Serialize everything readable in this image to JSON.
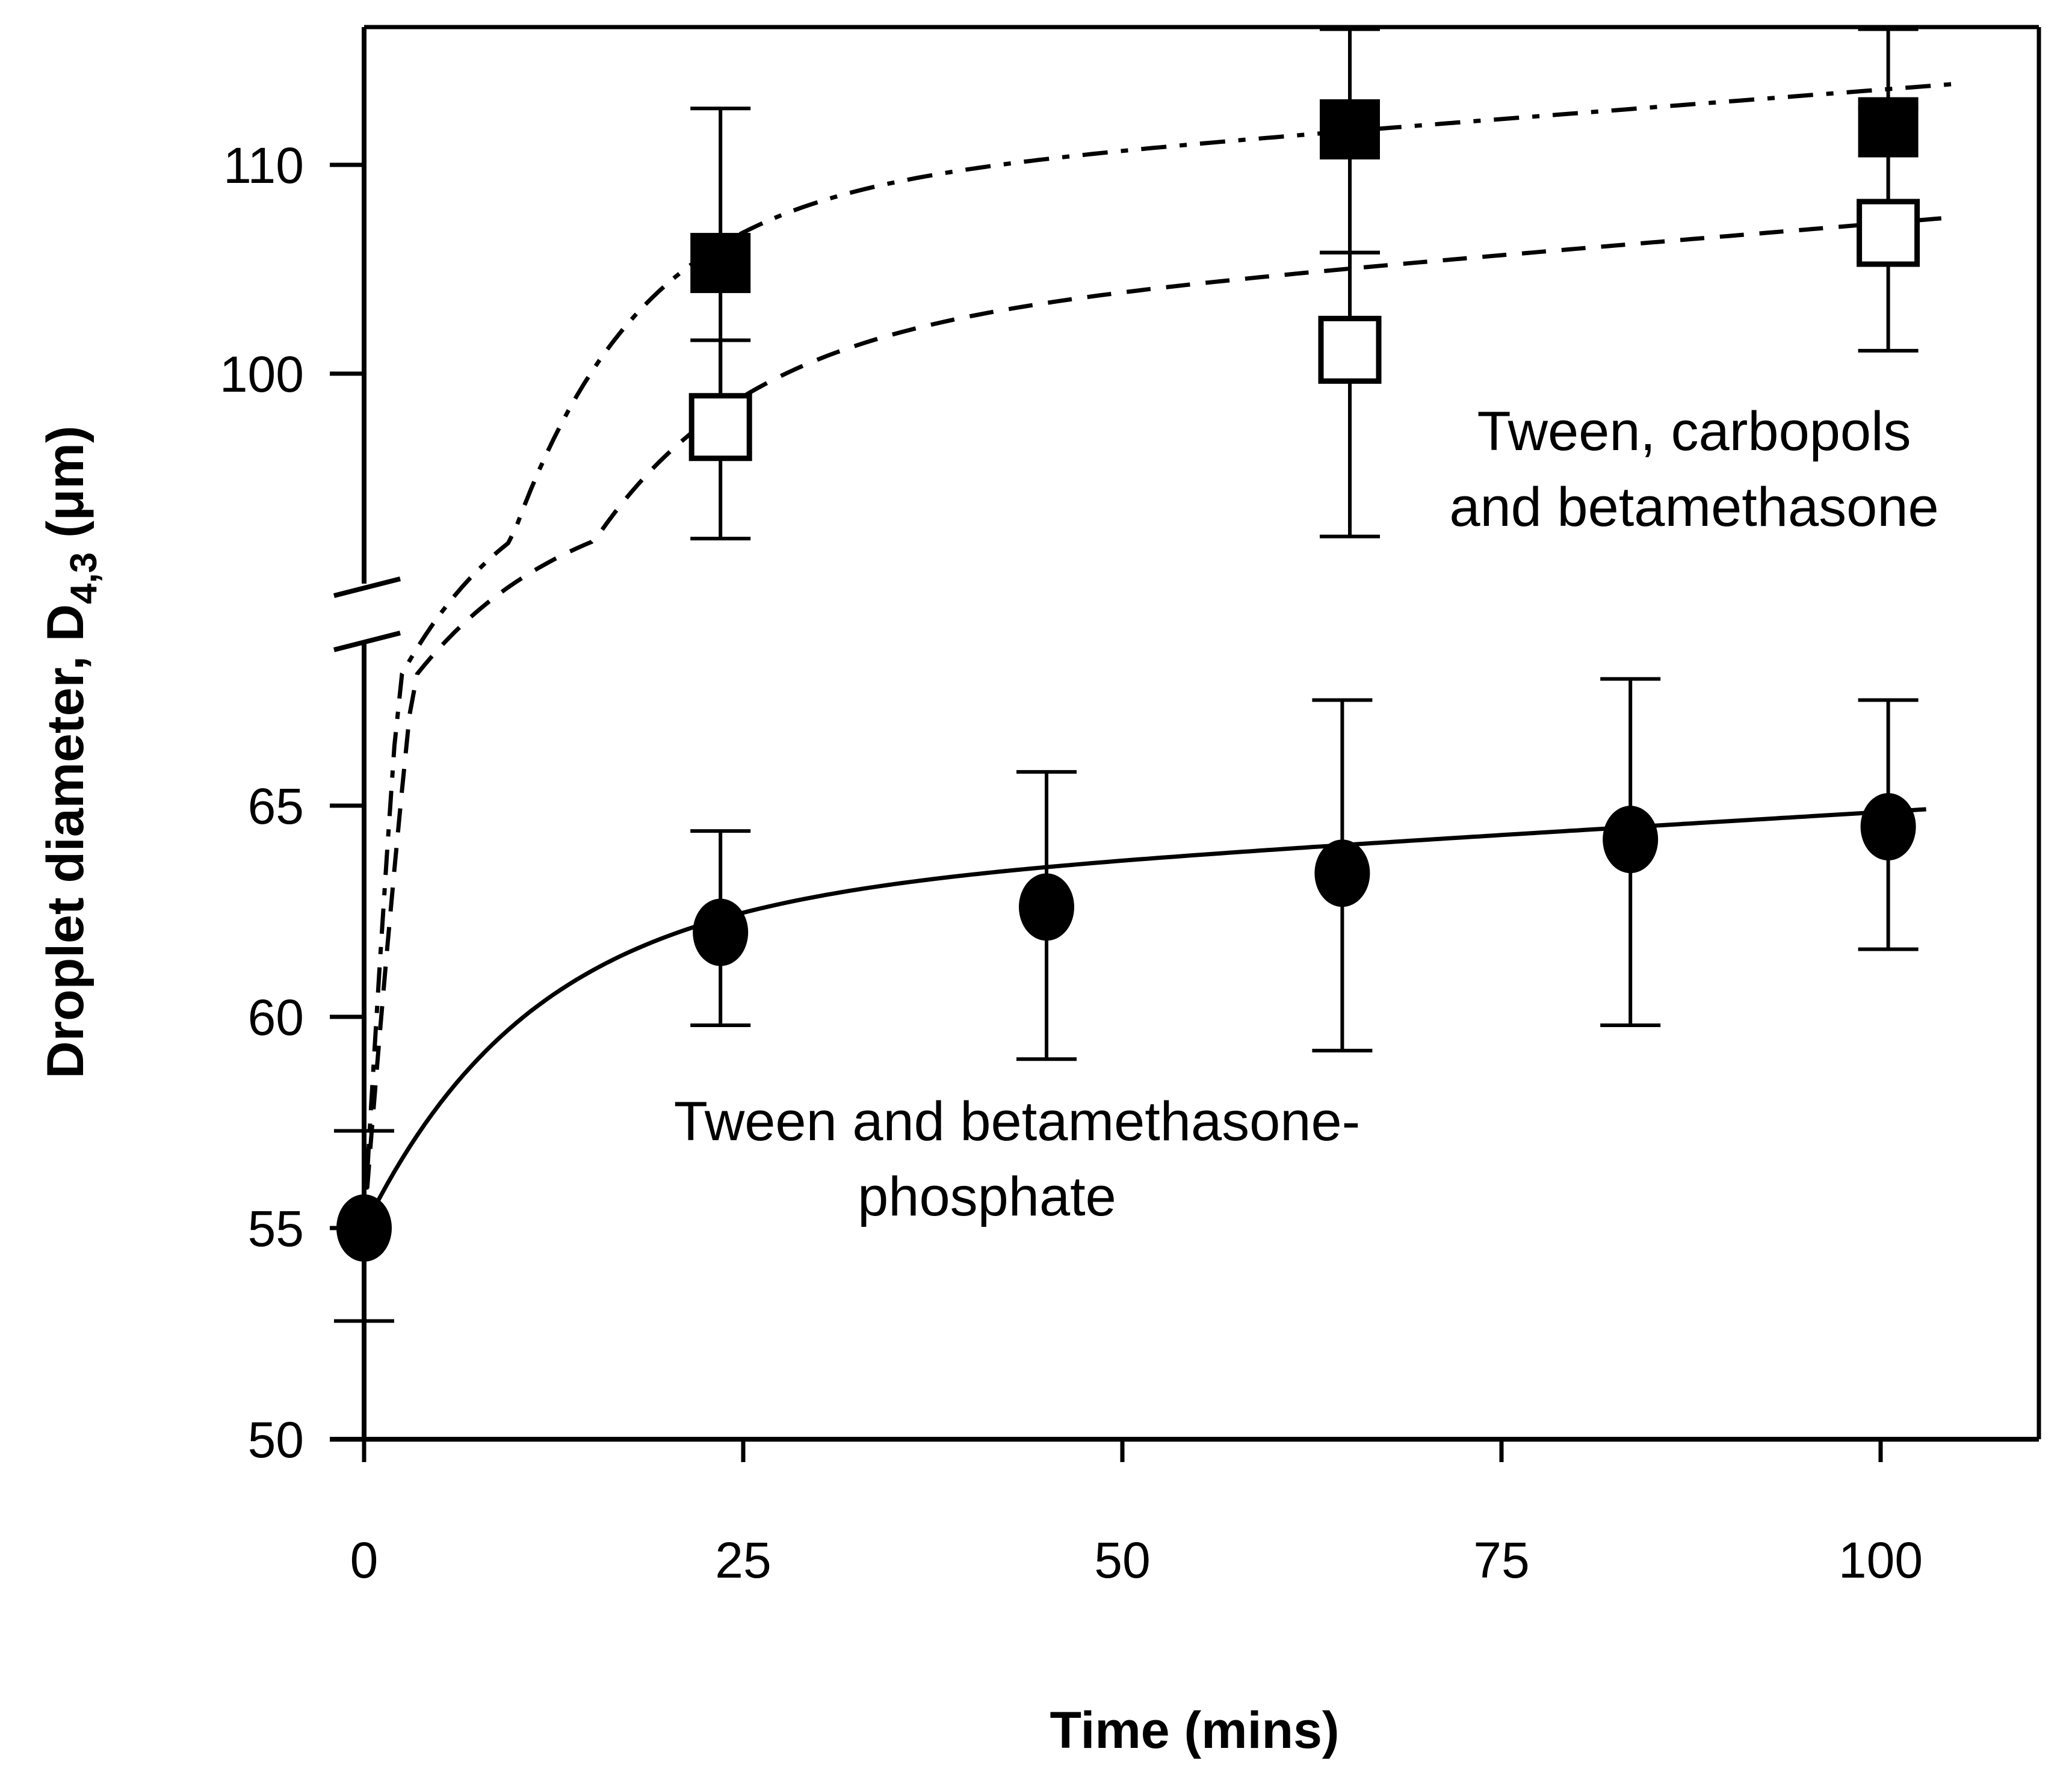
{
  "chart_data": {
    "type": "scatter",
    "title": "",
    "xlabel": "Time (mins)",
    "ylabel": {
      "main": "Droplet diameter, D",
      "subscript": "4,3",
      "unit": " (μm)"
    },
    "xlim": [
      0,
      110
    ],
    "x_ticks": [
      0,
      25,
      50,
      75,
      100
    ],
    "y_ticks_lower": [
      50,
      55,
      60,
      65
    ],
    "y_ticks_upper": [
      100,
      110
    ],
    "y_break": "axis broken between 68 and 92",
    "series": [
      {
        "name": "Tween and betamethasone-phosphate",
        "marker": "filled-circle",
        "fit_line": "solid",
        "x": [
          0,
          23.5,
          45,
          64.5,
          83.5,
          100.5
        ],
        "y": [
          55.0,
          62.0,
          62.6,
          63.4,
          64.2,
          64.5
        ],
        "y_err_low": [
          52.8,
          59.8,
          59.0,
          59.2,
          59.8,
          61.6
        ],
        "y_err_high": [
          57.3,
          64.4,
          65.8,
          67.5,
          68.0,
          67.5
        ]
      },
      {
        "name": "Tween, carbopols and betamethasone (filled)",
        "marker": "filled-square",
        "fit_line": "dash-dot",
        "x": [
          23.5,
          65,
          100.5
        ],
        "y": [
          105.3,
          111.7,
          111.8
        ],
        "y_err_low": [
          97.8,
          105.8,
          105.8
        ],
        "y_err_high": [
          112.7,
          116.5,
          116.5
        ]
      },
      {
        "name": "Tween, carbopols and betamethasone (open)",
        "marker": "open-square",
        "fit_line": "dashed",
        "x": [
          23.5,
          65,
          100.5
        ],
        "y": [
          97.5,
          101.2,
          106.8
        ],
        "y_err_low": [
          92.1,
          92.2,
          101.1
        ],
        "y_err_high": [
          101.6,
          105.8,
          112.7
        ]
      }
    ],
    "annotations": [
      {
        "text": "Tween, carbopols",
        "target": "upper-right"
      },
      {
        "text": "and betamethasone",
        "target": "upper-right"
      },
      {
        "text": "Tween and betamethasone-",
        "target": "lower-middle"
      },
      {
        "text": "phosphate",
        "target": "lower-middle"
      }
    ]
  }
}
